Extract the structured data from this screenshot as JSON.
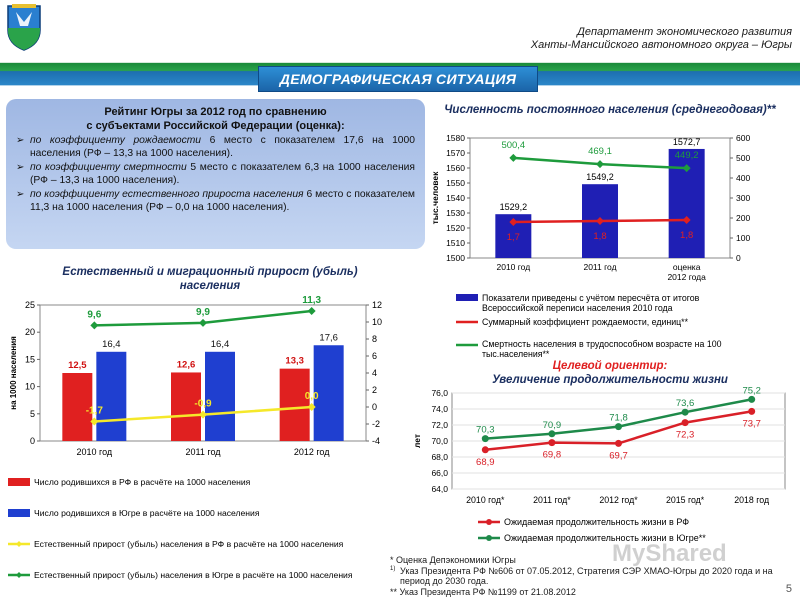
{
  "header": {
    "dept_line1": "Департамент экономического развития",
    "dept_line2": "Ханты-Мансийского автономного округа – Югры",
    "banner": "ДЕМОГРАФИЧЕСКАЯ СИТУАЦИЯ"
  },
  "rating": {
    "title_line1": "Рейтинг Югры  за 2012 год по сравнению",
    "title_line2": "с субъектами Российской Федерации (оценка):",
    "items": [
      {
        "lead": "по коэффициенту рождаемости",
        "text": " 6 место с показателем 17,6 на 1000 населения (РФ – 13,3 на 1000 населения)."
      },
      {
        "lead": "по коэффициенту смертности",
        "text": " 5 место с показателем 6,3 на 1000 населения (РФ – 13,3 на 1000 населения)."
      },
      {
        "lead": "по коэффициенту естественного прироста населения",
        "text": " 6 место с показателем 11,3 на 1000 населения (РФ – 0,0 на 1000 населения)."
      }
    ]
  },
  "chart_data": [
    {
      "id": "population",
      "type": "bar+line",
      "title": "Численность постоянного населения (среднегодовая)**",
      "categories": [
        "2010 год",
        "2011 год",
        "оценка 2012 года"
      ],
      "ylabel": "тыс.человек",
      "ylim": [
        1500,
        1580
      ],
      "yticks": [
        1500,
        1510,
        1520,
        1530,
        1540,
        1550,
        1560,
        1570,
        1580
      ],
      "y2lim": [
        0,
        600
      ],
      "y2ticks": [
        0,
        100,
        200,
        300,
        400,
        500,
        600
      ],
      "series": [
        {
          "name": "Показатели приведены с учётом пересчёта от итогов Всероссийской переписи населения 2010 года",
          "kind": "bar",
          "axis": "left",
          "color": "#1f1fb4",
          "values": [
            1529.2,
            1549.2,
            1572.7
          ],
          "labels": [
            "1529,2",
            "1549,2",
            "1572,7"
          ]
        },
        {
          "name": "Суммарный коэффициент рождаемости, единиц**",
          "kind": "line",
          "axis": "right",
          "color": "#e02020",
          "values": [
            1.7,
            1.8,
            1.8
          ],
          "plot_values": [
            180,
            185,
            190
          ],
          "labels": [
            "1,7",
            "1,8",
            "1,8"
          ]
        },
        {
          "name": "Смертность населения в трудоспособном возрасте на 100 тыс.населения**",
          "kind": "line",
          "axis": "right",
          "color": "#1e9b3c",
          "values": [
            500.4,
            469.1,
            449.2
          ],
          "labels": [
            "500,4",
            "469,1",
            "449,2"
          ]
        }
      ]
    },
    {
      "id": "natural",
      "type": "bar+line",
      "title": "Естественный и миграционный прирост (убыль) населения",
      "categories": [
        "2010 год",
        "2011 год",
        "2012 год"
      ],
      "ylabel": "на 1000 населения",
      "ylim": [
        0,
        25
      ],
      "yticks": [
        0,
        5,
        10,
        15,
        20,
        25
      ],
      "y2lim": [
        -4,
        12
      ],
      "y2ticks": [
        -4,
        -2,
        0,
        2,
        4,
        6,
        8,
        10,
        12
      ],
      "series": [
        {
          "name": "Число родившихся в РФ в расчёте на 1000 населения",
          "kind": "bar",
          "axis": "left",
          "color": "#e02020",
          "values": [
            12.5,
            12.6,
            13.3
          ],
          "labels": [
            "12,5",
            "12,6",
            "13,3"
          ]
        },
        {
          "name": "Число родившихся в Югре в расчёте на 1000 населения",
          "kind": "bar",
          "axis": "left",
          "color": "#1f3fd0",
          "values": [
            16.4,
            16.4,
            17.6
          ],
          "labels": [
            "16,4",
            "16,4",
            "17,6"
          ]
        },
        {
          "name": "Естественный прирост (убыль) населения в РФ в расчёте на 1000 населения",
          "kind": "line",
          "axis": "right",
          "color": "#f5e82a",
          "values": [
            -1.7,
            -0.9,
            0.0
          ],
          "labels": [
            "-1,7",
            "-0,9",
            "0,0"
          ]
        },
        {
          "name": "Естественный прирост (убыль) населения в Югре в расчёте на 1000 населения",
          "kind": "line",
          "axis": "right",
          "color": "#1e9b3c",
          "values": [
            9.6,
            9.9,
            11.3
          ],
          "labels": [
            "9,6",
            "9,9",
            "11,3"
          ]
        }
      ]
    },
    {
      "id": "life",
      "type": "line",
      "title_line1": "Целевой ориентир:",
      "title_line2": "Увеличение продолжительности жизни",
      "categories": [
        "2010 год*",
        "2011 год*",
        "2012 год*",
        "2015 год*",
        "2018 год"
      ],
      "ylabel": "лет",
      "ylim": [
        64,
        76
      ],
      "yticks": [
        "64,0",
        "66,0",
        "68,0",
        "70,0",
        "72,0",
        "74,0",
        "76,0"
      ],
      "series": [
        {
          "name": "Ожидаемая продолжительность жизни в РФ",
          "color": "#d92028",
          "values": [
            68.9,
            69.8,
            69.7,
            72.3,
            73.7
          ],
          "labels": [
            "68,9",
            "69,8",
            "69,7",
            "72,3",
            "73,7"
          ]
        },
        {
          "name": "Ожидаемая продолжительность жизни в Югре**",
          "color": "#1e8a4a",
          "values": [
            70.3,
            70.9,
            71.8,
            73.6,
            75.2
          ],
          "labels": [
            "70,3",
            "70,9",
            "71,8",
            "73,6",
            "75,2"
          ]
        }
      ]
    }
  ],
  "notes": {
    "n1": "*  Оценка Депэкономики Югры",
    "n2": "Указ Президента РФ №606 от 07.05.2012, Стратегия СЭР ХМАО-Югры до 2020 года и на период до 2030 года.",
    "n2_mark": "1)",
    "n3": "**  Указ Президента РФ №1199 от 21.08.2012"
  },
  "page_number": "5",
  "watermark": "MyShared"
}
